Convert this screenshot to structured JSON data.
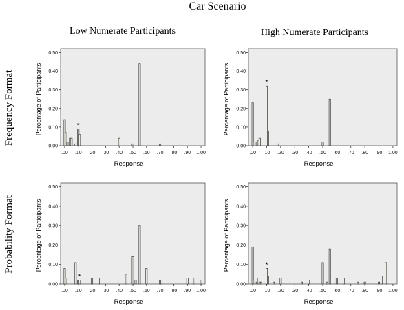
{
  "figure": {
    "title": "Car Scenario",
    "column_headers": [
      "Low Numerate Participants",
      "High Numerate Participants"
    ],
    "row_headers": [
      "Frequency Format",
      "Probability Format"
    ]
  },
  "colors": {
    "panel_bg": "#ececec",
    "bar_fill": "#efeee6",
    "bar_stroke": "#333333"
  },
  "chart_data": [
    {
      "type": "bar",
      "title": "Low Numerate Participants",
      "row": "Frequency Format",
      "xlabel": "Response",
      "ylabel": "Percentage of Participants",
      "xlim": [
        -0.03,
        1.03
      ],
      "ylim": [
        0,
        0.52
      ],
      "xticks": [
        ".00",
        ".10",
        ".20",
        ".30",
        ".40",
        ".50",
        ".60",
        ".70",
        ".80",
        ".90",
        "1.00"
      ],
      "yticks": [
        "0.00",
        "0.10",
        "0.20",
        "0.30",
        "0.40",
        "0.50"
      ],
      "grid": false,
      "annotations": [
        {
          "text": "*",
          "x": 0.1
        }
      ],
      "x": [
        0.0,
        0.01,
        0.02,
        0.04,
        0.05,
        0.08,
        0.09,
        0.1,
        0.11,
        0.4,
        0.5,
        0.55,
        0.7
      ],
      "values": [
        0.14,
        0.07,
        0.02,
        0.04,
        0.04,
        0.01,
        0.01,
        0.09,
        0.06,
        0.04,
        0.01,
        0.44,
        0.01
      ]
    },
    {
      "type": "bar",
      "title": "High Numerate Participants",
      "row": "Frequency Format",
      "xlabel": "Response",
      "ylabel": "Percentage of Participants",
      "xlim": [
        -0.03,
        1.03
      ],
      "ylim": [
        0,
        0.52
      ],
      "xticks": [
        ".00",
        ".10",
        ".20",
        ".30",
        ".40",
        ".50",
        ".60",
        ".70",
        ".80",
        ".90",
        "1.00"
      ],
      "yticks": [
        "0.00",
        "0.10",
        "0.20",
        "0.30",
        "0.40",
        "0.50"
      ],
      "grid": false,
      "annotations": [
        {
          "text": "*",
          "x": 0.1
        }
      ],
      "x": [
        0.0,
        0.01,
        0.03,
        0.04,
        0.05,
        0.1,
        0.11,
        0.18,
        0.5,
        0.55
      ],
      "values": [
        0.23,
        0.02,
        0.02,
        0.03,
        0.04,
        0.32,
        0.08,
        0.01,
        0.02,
        0.25
      ]
    },
    {
      "type": "bar",
      "title": "Low Numerate Participants",
      "row": "Probability Format",
      "xlabel": "Response",
      "ylabel": "Percentage of Participants",
      "xlim": [
        -0.03,
        1.03
      ],
      "ylim": [
        0,
        0.52
      ],
      "xticks": [
        ".00",
        ".10",
        ".20",
        ".30",
        ".40",
        ".50",
        ".60",
        ".70",
        ".80",
        ".90",
        "1.00"
      ],
      "yticks": [
        "0.00",
        "0.10",
        "0.20",
        "0.30",
        "0.40",
        "0.50"
      ],
      "grid": false,
      "annotations": [
        {
          "text": "*",
          "x": 0.11
        }
      ],
      "x": [
        0.0,
        0.01,
        0.08,
        0.1,
        0.11,
        0.2,
        0.25,
        0.45,
        0.5,
        0.52,
        0.55,
        0.6,
        0.7,
        0.71,
        0.9,
        0.95,
        1.0
      ],
      "values": [
        0.08,
        0.03,
        0.11,
        0.02,
        0.02,
        0.03,
        0.03,
        0.05,
        0.14,
        0.02,
        0.3,
        0.08,
        0.02,
        0.02,
        0.03,
        0.03,
        0.02
      ]
    },
    {
      "type": "bar",
      "title": "High Numerate Participants",
      "row": "Probability Format",
      "xlabel": "Response",
      "ylabel": "Percentage of Participants",
      "xlim": [
        -0.03,
        1.03
      ],
      "ylim": [
        0,
        0.52
      ],
      "xticks": [
        ".00",
        ".10",
        ".20",
        ".30",
        ".40",
        ".50",
        ".60",
        ".70",
        ".80",
        ".90",
        "1.00"
      ],
      "yticks": [
        "0.00",
        "0.10",
        "0.20",
        "0.30",
        "0.40",
        "0.50"
      ],
      "grid": false,
      "annotations": [
        {
          "text": "*",
          "x": 0.1
        }
      ],
      "x": [
        0.0,
        0.01,
        0.03,
        0.04,
        0.05,
        0.06,
        0.1,
        0.11,
        0.15,
        0.2,
        0.35,
        0.4,
        0.5,
        0.53,
        0.55,
        0.6,
        0.65,
        0.75,
        0.8,
        0.9,
        0.92,
        0.95
      ],
      "values": [
        0.19,
        0.02,
        0.01,
        0.03,
        0.01,
        0.01,
        0.08,
        0.04,
        0.01,
        0.03,
        0.01,
        0.02,
        0.11,
        0.01,
        0.18,
        0.03,
        0.03,
        0.01,
        0.01,
        0.01,
        0.04,
        0.11
      ]
    }
  ]
}
